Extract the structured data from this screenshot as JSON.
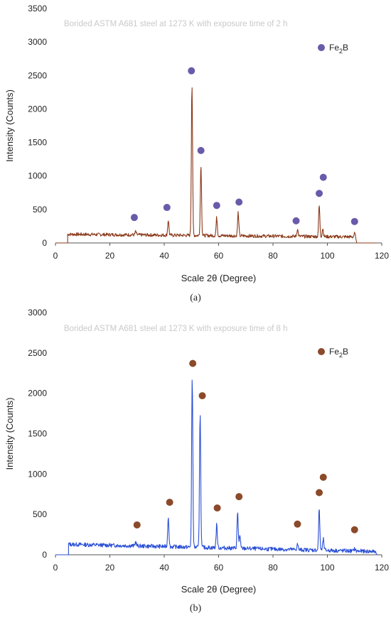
{
  "chart_data": [
    {
      "type": "line",
      "title": "Borided ASTM A681 steel at 1273 K with exposure time of 2 h",
      "xlabel": "Scale 2θ (Degree)",
      "ylabel": "Intensity (Counts)",
      "caption": "(a)",
      "xlim": [
        0,
        120
      ],
      "ylim": [
        0,
        3500
      ],
      "xticks": [
        0,
        20,
        40,
        60,
        80,
        100,
        120
      ],
      "yticks": [
        0,
        500,
        1000,
        1500,
        2000,
        2500,
        3000,
        3500
      ],
      "line_color": "#8b3a1a",
      "baseline": {
        "start": 4.5,
        "end": 110.5,
        "level_start": 130,
        "level_end": 90,
        "noise": 25
      },
      "peaks": [
        {
          "x": 29.5,
          "y": 180
        },
        {
          "x": 41.5,
          "y": 360
        },
        {
          "x": 50.2,
          "y": 2400
        },
        {
          "x": 53.5,
          "y": 1200
        },
        {
          "x": 59.3,
          "y": 400
        },
        {
          "x": 67.2,
          "y": 480
        },
        {
          "x": 89.0,
          "y": 240
        },
        {
          "x": 97.0,
          "y": 600
        },
        {
          "x": 98.3,
          "y": 250
        },
        {
          "x": 110.0,
          "y": 180
        }
      ],
      "marker_label": "Fe2B",
      "marker_color": "#6a5aaa",
      "markers": [
        {
          "x": 29.0,
          "y": 380
        },
        {
          "x": 41.0,
          "y": 530
        },
        {
          "x": 50.0,
          "y": 2570
        },
        {
          "x": 53.5,
          "y": 1380
        },
        {
          "x": 59.3,
          "y": 560
        },
        {
          "x": 67.5,
          "y": 610
        },
        {
          "x": 88.5,
          "y": 330
        },
        {
          "x": 97.0,
          "y": 740
        },
        {
          "x": 98.5,
          "y": 980
        },
        {
          "x": 110.0,
          "y": 320
        }
      ],
      "legend": {
        "main": "Fe",
        "sub": "2",
        "tail": "B",
        "placement": "top-right"
      }
    },
    {
      "type": "line",
      "title": "Borided ASTM A681 steel at 1273 K with exposure time of 8 h",
      "xlabel": "Scale 2θ (Degree)",
      "ylabel": "Intensity (Counts)",
      "caption": "(b)",
      "xlim": [
        0,
        120
      ],
      "ylim": [
        0,
        3000
      ],
      "xticks": [
        0,
        20,
        40,
        60,
        80,
        100,
        120
      ],
      "yticks": [
        0,
        500,
        1000,
        1500,
        2000,
        2500,
        3000
      ],
      "line_color": "#2a4fd6",
      "baseline": {
        "start": 4.8,
        "end": 118,
        "level_start": 130,
        "level_end": 40,
        "noise": 25
      },
      "peaks": [
        {
          "x": 29.5,
          "y": 180
        },
        {
          "x": 41.5,
          "y": 510
        },
        {
          "x": 50.3,
          "y": 2230
        },
        {
          "x": 53.2,
          "y": 1800
        },
        {
          "x": 59.3,
          "y": 420
        },
        {
          "x": 67.0,
          "y": 570
        },
        {
          "x": 67.8,
          "y": 280
        },
        {
          "x": 89.0,
          "y": 200
        },
        {
          "x": 97.0,
          "y": 640
        },
        {
          "x": 98.5,
          "y": 270
        },
        {
          "x": 110.0,
          "y": 160
        }
      ],
      "marker_label": "Fe2B",
      "marker_color": "#8b4a2a",
      "markers": [
        {
          "x": 30.0,
          "y": 370
        },
        {
          "x": 42.0,
          "y": 650
        },
        {
          "x": 50.5,
          "y": 2370
        },
        {
          "x": 54.0,
          "y": 1970
        },
        {
          "x": 59.5,
          "y": 580
        },
        {
          "x": 67.5,
          "y": 720
        },
        {
          "x": 89.0,
          "y": 380
        },
        {
          "x": 97.0,
          "y": 770
        },
        {
          "x": 98.5,
          "y": 960
        },
        {
          "x": 110.0,
          "y": 310
        }
      ],
      "legend": {
        "main": "Fe",
        "sub": "2",
        "tail": "B",
        "placement": "top-right"
      }
    }
  ]
}
